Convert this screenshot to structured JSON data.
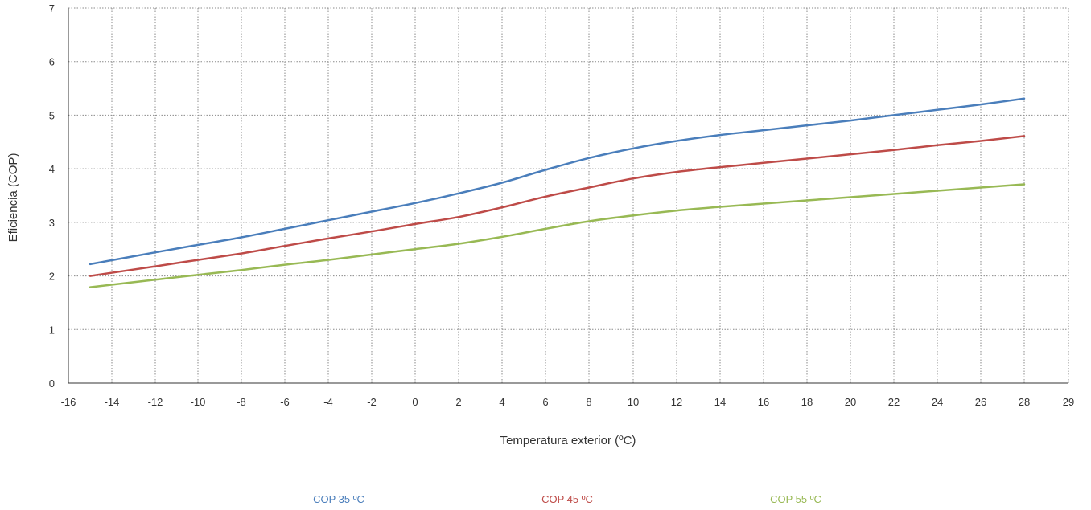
{
  "chart_data": {
    "type": "line",
    "title": "",
    "xlabel": "Temperatura exterior (ºC)",
    "ylabel": "Eficiencia (COP)",
    "xlim": [
      -16,
      29
    ],
    "ylim": [
      0,
      7
    ],
    "x_ticks": [
      "-16",
      "-14",
      "-12",
      "-10",
      "-8",
      "-6",
      "-4",
      "-2",
      "0",
      "2",
      "4",
      "6",
      "8",
      "10",
      "12",
      "14",
      "16",
      "18",
      "20",
      "22",
      "24",
      "26",
      "28",
      "29"
    ],
    "y_ticks": [
      "0",
      "1",
      "2",
      "3",
      "4",
      "5",
      "6",
      "7"
    ],
    "grid": true,
    "legend_position": "bottom",
    "x": [
      -15,
      -12,
      -10,
      -8,
      -6,
      -4,
      -2,
      0,
      2,
      4,
      6,
      8,
      10,
      12,
      14,
      16,
      18,
      20,
      22,
      24,
      26,
      28
    ],
    "series": [
      {
        "name": "COP 35 ºC",
        "color": "#4a7ebb",
        "values": [
          2.22,
          2.44,
          2.58,
          2.72,
          2.88,
          3.04,
          3.2,
          3.36,
          3.54,
          3.74,
          3.98,
          4.2,
          4.38,
          4.52,
          4.63,
          4.72,
          4.81,
          4.9,
          5.0,
          5.1,
          5.2,
          5.31
        ]
      },
      {
        "name": "COP 45 ºC",
        "color": "#be4b48",
        "values": [
          2.0,
          2.18,
          2.3,
          2.42,
          2.56,
          2.7,
          2.83,
          2.97,
          3.1,
          3.28,
          3.48,
          3.65,
          3.82,
          3.94,
          4.03,
          4.11,
          4.19,
          4.27,
          4.35,
          4.44,
          4.52,
          4.61
        ]
      },
      {
        "name": "COP 55 ºC",
        "color": "#98b954",
        "values": [
          1.79,
          1.93,
          2.02,
          2.11,
          2.21,
          2.3,
          2.4,
          2.5,
          2.6,
          2.73,
          2.88,
          3.02,
          3.13,
          3.22,
          3.29,
          3.35,
          3.41,
          3.47,
          3.53,
          3.59,
          3.65,
          3.71
        ]
      }
    ]
  }
}
